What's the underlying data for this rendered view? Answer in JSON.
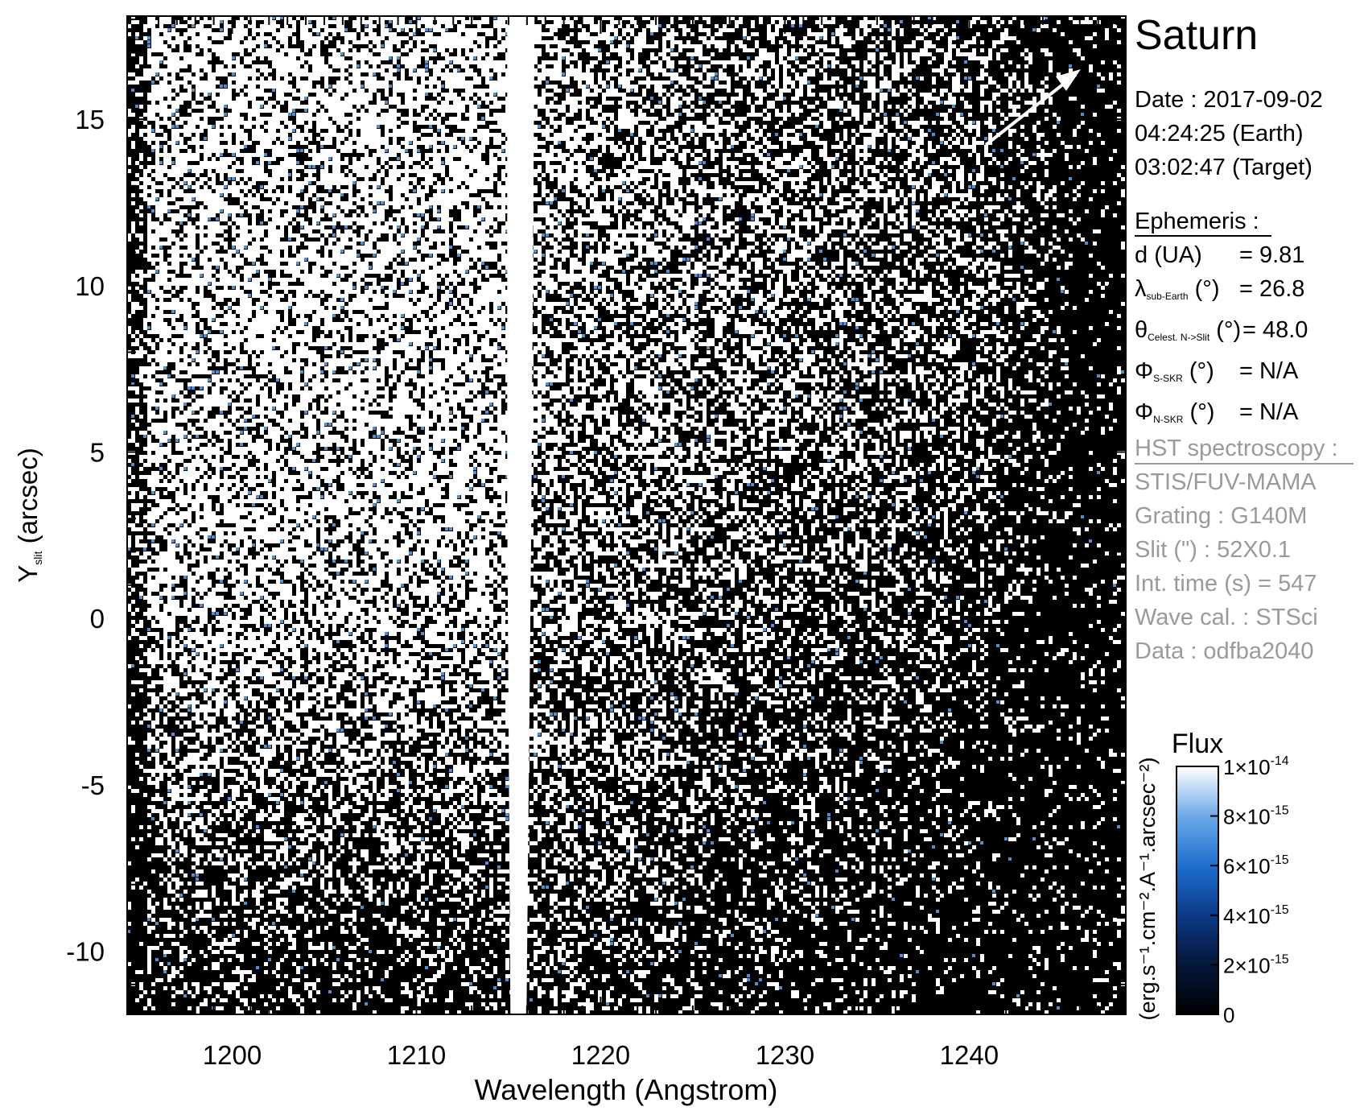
{
  "panel": {
    "title": "Saturn",
    "date_lines": [
      "Date : 2017-09-02",
      "04:24:25 (Earth)",
      "03:02:47 (Target)"
    ],
    "ephemeris_title": "Ephemeris :",
    "ephemeris": [
      {
        "sym": "d",
        "sub": "",
        "rest": " (UA)",
        "value": "= 9.81"
      },
      {
        "sym": "λ",
        "sub": "sub-Earth",
        "rest": " (°)",
        "value": "= 26.8"
      },
      {
        "sym": "θ",
        "sub": "Celest. N->Slit",
        "rest": " (°)",
        "value": "= 48.0"
      },
      {
        "sym": "Φ",
        "sub": "S-SKR",
        "rest": " (°)",
        "value": "= N/A"
      },
      {
        "sym": "Φ",
        "sub": "N-SKR",
        "rest": " (°)",
        "value": "= N/A"
      }
    ],
    "hst_title": "HST spectroscopy :",
    "hst_lines": [
      "STIS/FUV-MAMA",
      "Grating : G140M",
      "Slit (\") : 52X0.1",
      "Int. time (s) = 547",
      "Wave cal. : STSci",
      "Data : odfba2040"
    ],
    "colors": {
      "hst_text": "#9a9a9a",
      "ephem_text": "#000000"
    }
  },
  "chart_data": {
    "type": "heatmap",
    "xlabel": "Wavelength (Angstrom)",
    "ylabel_main": "Y",
    "ylabel_sub": "slit",
    "ylabel_rest": " (arcsec)",
    "xlim": [
      1194.3,
      1248.5
    ],
    "ylim": [
      -11.9,
      18.1
    ],
    "xticks": [
      1200,
      1210,
      1220,
      1230,
      1240
    ],
    "yticks": [
      15,
      10,
      5,
      0,
      -5,
      -10
    ],
    "geocoronal_lyman_alpha_center": 1215.67,
    "colorbar": {
      "title": "Flux",
      "label": "(erg.s⁻¹.cm⁻².A⁻¹.arcsec⁻²)",
      "range": [
        0,
        1e-14
      ],
      "ticks": [
        {
          "value": 1e-14,
          "mant": "1×10",
          "exp": "-14"
        },
        {
          "value": 8e-15,
          "mant": "8×10",
          "exp": "-15"
        },
        {
          "value": 6e-15,
          "mant": "6×10",
          "exp": "-15"
        },
        {
          "value": 4e-15,
          "mant": "4×10",
          "exp": "-15"
        },
        {
          "value": 2e-15,
          "mant": "2×10",
          "exp": "-15"
        },
        {
          "value": 0,
          "mant": "0",
          "exp": ""
        }
      ],
      "colormap": [
        "#000000",
        "#05183a",
        "#0a3a86",
        "#1e6fd0",
        "#6eaae8",
        "#ffffff"
      ]
    },
    "annotation": "arrow toward upper-right (Celestial North direction)"
  }
}
